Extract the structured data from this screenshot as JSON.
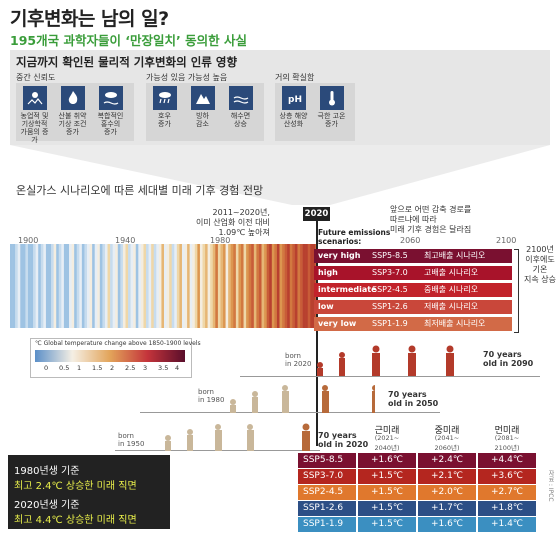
{
  "title": "기후변화는 남의 일?",
  "subtitle": "195개국 과학자들이 ‘만장일치’ 동의한 사실",
  "top_panel": {
    "heading": "지금까지 확인된 물리적 기후변화의 인류 영향",
    "groups": [
      {
        "label": "중간 신뢰도",
        "items": [
          {
            "icon": "drought-icon",
            "label": "농업적 및\n기상학적\n가뭄의 증가"
          },
          {
            "icon": "fire-icon",
            "label": "산불 취약\n기상 조건\n증가"
          },
          {
            "icon": "flood-rain-icon",
            "label": "복합적인\n홍수의\n증가"
          }
        ]
      },
      {
        "label": "가능성 있음 가능성 높음",
        "items": [
          {
            "icon": "heavy-rain-icon",
            "label": "호우\n증가"
          },
          {
            "icon": "glacier-icon",
            "label": "빙하\n감소"
          },
          {
            "icon": "sea-level-icon",
            "label": "해수면\n상승"
          }
        ]
      },
      {
        "label": "거의 확실함",
        "items": [
          {
            "icon": "ph-icon",
            "label": "상층 해양\n산성화"
          },
          {
            "icon": "thermometer-icon",
            "label": "극한 고온\n증가"
          }
        ]
      }
    ]
  },
  "scenario_heading": "온실가스 시나리오에 따른 세대별 미래 기후 경험 전망",
  "timeline": {
    "years": [
      "1900",
      "1940",
      "1980",
      "2020",
      "2060",
      "2100"
    ],
    "marker_year": "2020",
    "decade_note": "2011~2020년,\n이미 산업화 이전 대비\n1.09℃ 높아져",
    "future_label": "Future emissions\nscenarios:",
    "future_note": "앞으로 어떤 감축 경로를\n따르냐에 따라\n미래 기후 경험은 달라짐",
    "right_note": "2100년\n이후에도\n기온\n지속 상승"
  },
  "scenarios": [
    {
      "name": "very high",
      "code": "SSP5-8.5",
      "desc": "최고배출 시나리오",
      "color": "#7a1030"
    },
    {
      "name": "high",
      "code": "SSP3-7.0",
      "desc": "고배출 시나리오",
      "color": "#a8132a"
    },
    {
      "name": "intermediate",
      "code": "SSP2-4.5",
      "desc": "중배출 시나리오",
      "color": "#c2232b"
    },
    {
      "name": "low",
      "code": "SSP1-2.6",
      "desc": "저배출 시나리오",
      "color": "#c9473a"
    },
    {
      "name": "very low",
      "code": "SSP1-1.9",
      "desc": "최저배출 시나리오",
      "color": "#d26a47"
    }
  ],
  "legend": {
    "title": "℃ Global temperature change above 1850-1900 levels",
    "ticks": [
      "0",
      "0.5",
      "1",
      "1.5",
      "2",
      "2.5",
      "3",
      "3.5",
      "4"
    ]
  },
  "generations": [
    {
      "born": "born\nin 1950",
      "age": "70 years\nold in 2020"
    },
    {
      "born": "born\nin 1980",
      "age": "70 years\nold in 2050"
    },
    {
      "born": "born\nin 2020",
      "age": "70 years\nold in 2090"
    }
  ],
  "callout": {
    "line1": "1980년생 기준",
    "line2": "최고 2.4℃ 상승한 미래 직면",
    "line3": "2020년생 기준",
    "line4": "최고 4.4℃ 상승한 미래 직면"
  },
  "table": {
    "columns": [
      {
        "title": "근미래",
        "range": "(2021~\n2040년)"
      },
      {
        "title": "중미래",
        "range": "(2041~\n2060년)"
      },
      {
        "title": "먼미래",
        "range": "(2081~\n2100년)"
      }
    ],
    "rows": [
      {
        "code": "SSP5-8.5",
        "color": "#7a1030",
        "values": [
          "+1.6℃",
          "+2.4℃",
          "+4.4℃"
        ]
      },
      {
        "code": "SSP3-7.0",
        "color": "#b4261f",
        "values": [
          "+1.5℃",
          "+2.1℃",
          "+3.6℃"
        ]
      },
      {
        "code": "SSP2-4.5",
        "color": "#e0782d",
        "values": [
          "+1.5℃",
          "+2.0℃",
          "+2.7℃"
        ]
      },
      {
        "code": "SSP1-2.6",
        "color": "#2c4f86",
        "values": [
          "+1.5℃",
          "+1.7℃",
          "+1.8℃"
        ]
      },
      {
        "code": "SSP1-1.9",
        "color": "#3b8fc1",
        "values": [
          "+1.5℃",
          "+1.6℃",
          "+1.4℃"
        ]
      }
    ]
  },
  "credit": "자료 : IPCC"
}
